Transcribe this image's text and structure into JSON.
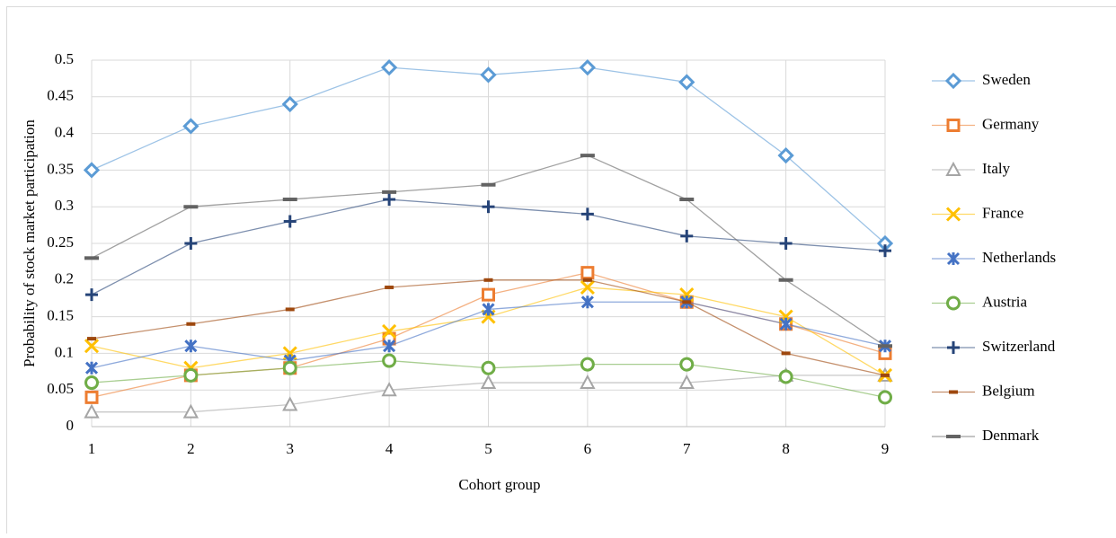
{
  "chart_data": {
    "type": "line",
    "y_label": "Probability of stock market participation",
    "x_label": "Cohort group",
    "x": [
      1,
      2,
      3,
      4,
      5,
      6,
      7,
      8,
      9
    ],
    "xlim": [
      1,
      9
    ],
    "xticks": [
      1,
      2,
      3,
      4,
      5,
      6,
      7,
      8,
      9
    ],
    "ylim": [
      0,
      0.5
    ],
    "yticks": [
      0,
      0.05,
      0.1,
      0.15,
      0.2,
      0.25,
      0.3,
      0.35,
      0.4,
      0.45,
      0.5
    ],
    "grid": true,
    "legend": "right",
    "series": [
      {
        "name": " Sweden",
        "color": "#5b9bd5",
        "marker": "diamond",
        "values": [
          0.35,
          0.41,
          0.44,
          0.49,
          0.48,
          0.49,
          0.47,
          0.37,
          0.25
        ]
      },
      {
        "name": "Germany",
        "color": "#ed7d31",
        "marker": "square",
        "values": [
          0.04,
          0.07,
          0.08,
          0.12,
          0.18,
          0.21,
          0.17,
          0.14,
          0.1
        ]
      },
      {
        "name": "Italy",
        "color": "#a5a5a5",
        "marker": "triangle",
        "values": [
          0.02,
          0.02,
          0.03,
          0.05,
          0.06,
          0.06,
          0.06,
          0.07,
          0.07
        ]
      },
      {
        "name": "France",
        "color": "#ffc000",
        "marker": "x",
        "values": [
          0.11,
          0.08,
          0.1,
          0.13,
          0.15,
          0.19,
          0.18,
          0.15,
          0.07
        ]
      },
      {
        "name": "Netherlands",
        "color": "#4472c4",
        "marker": "star",
        "values": [
          0.08,
          0.11,
          0.09,
          0.11,
          0.16,
          0.17,
          0.17,
          0.14,
          0.11
        ]
      },
      {
        "name": "Austria",
        "color": "#70ad47",
        "marker": "circle",
        "values": [
          0.06,
          0.07,
          0.08,
          0.09,
          0.08,
          0.085,
          0.085,
          0.068,
          0.04
        ]
      },
      {
        "name": "Switzerland",
        "color": "#264478",
        "marker": "plus",
        "values": [
          0.18,
          0.25,
          0.28,
          0.31,
          0.3,
          0.29,
          0.26,
          0.25,
          0.24
        ]
      },
      {
        "name": "Belgium",
        "color": "#9e480e",
        "marker": "dash",
        "values": [
          0.12,
          0.14,
          0.16,
          0.19,
          0.2,
          0.2,
          0.17,
          0.1,
          0.07
        ]
      },
      {
        "name": "Denmark",
        "color": "#636363",
        "marker": "bar",
        "values": [
          0.23,
          0.3,
          0.31,
          0.32,
          0.33,
          0.37,
          0.31,
          0.2,
          0.11
        ]
      }
    ]
  }
}
